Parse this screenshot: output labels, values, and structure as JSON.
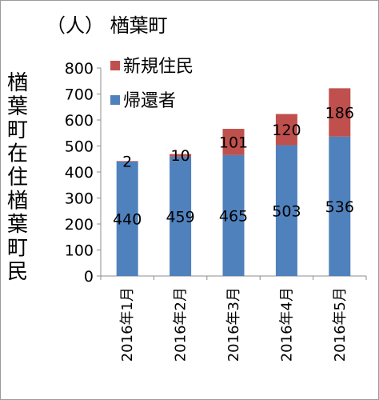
{
  "chart_data": {
    "type": "bar",
    "stacked": true,
    "title": "（人） 楢葉町",
    "ylabel": "楢葉町在住楢葉町民",
    "xlabel": "",
    "categories": [
      "2016年1月",
      "2016年2月",
      "2016年3月",
      "2016年4月",
      "2016年5月"
    ],
    "series": [
      {
        "name": "帰還者",
        "values": [
          440,
          459,
          465,
          503,
          536
        ],
        "color": "#4f81bd"
      },
      {
        "name": "新規住民",
        "values": [
          2,
          10,
          101,
          120,
          186
        ],
        "color": "#c0504d"
      }
    ],
    "ylim": [
      0,
      800
    ],
    "yticks": [
      0,
      100,
      200,
      300,
      400,
      500,
      600,
      700,
      800
    ],
    "grid": false,
    "legend_position": "top-left inside plot"
  }
}
